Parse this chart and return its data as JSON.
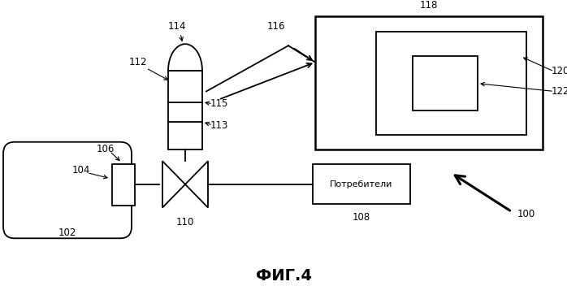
{
  "title": "ФИГ.4",
  "background_color": "#ffffff",
  "line_color": "#000000",
  "figsize": [
    6.98,
    3.52
  ],
  "dpi": 100
}
